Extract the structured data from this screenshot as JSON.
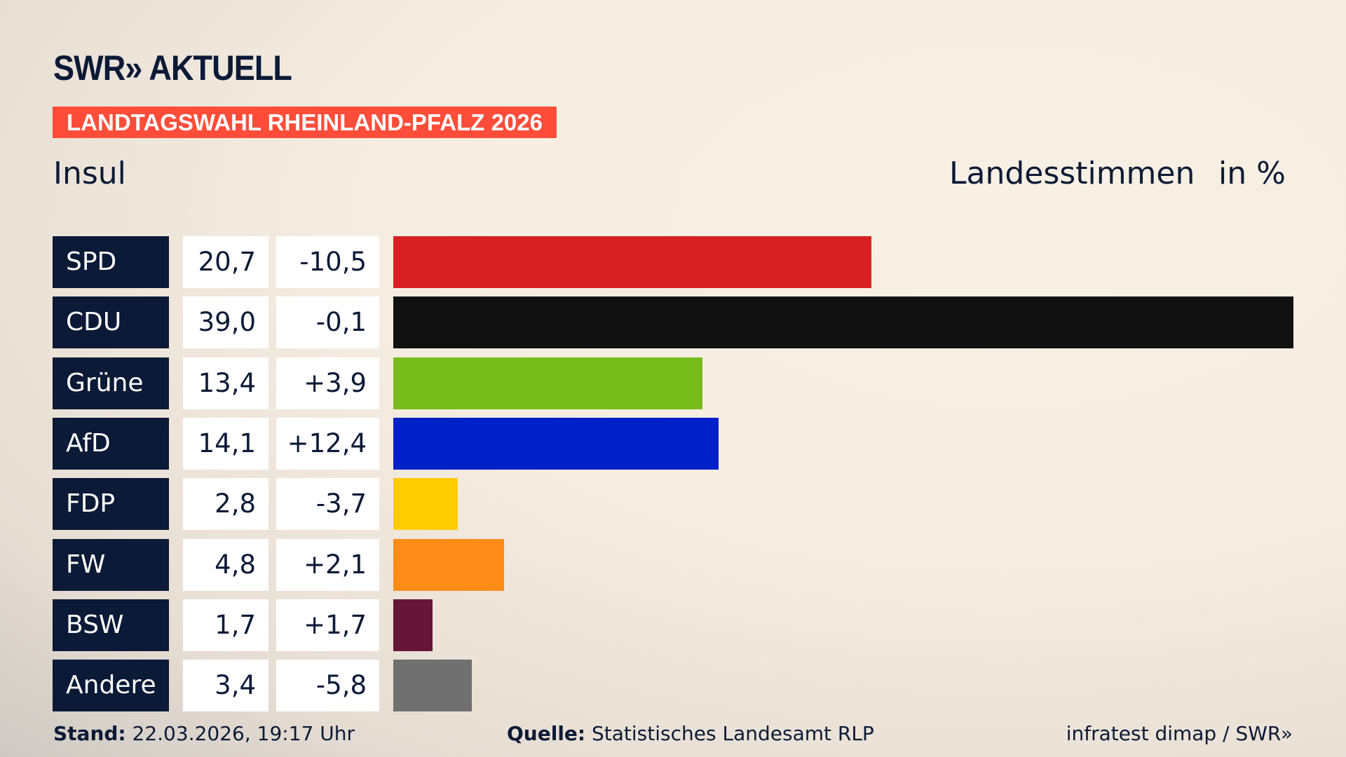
{
  "header": {
    "logo": "SWR» AKTUELL",
    "banner": "LANDTAGSWAHL RHEINLAND-PFALZ 2026",
    "place": "Insul",
    "metric": "Landesstimmen",
    "unit": "in %"
  },
  "chart_data": {
    "type": "bar",
    "orientation": "horizontal",
    "xlim": [
      0,
      39
    ],
    "categories": [
      "SPD",
      "CDU",
      "Grüne",
      "AfD",
      "FDP",
      "FW",
      "BSW",
      "Andere"
    ],
    "values": [
      20.7,
      39.0,
      13.4,
      14.1,
      2.8,
      4.8,
      1.7,
      3.4
    ],
    "value_labels": [
      "20,7",
      "39,0",
      "13,4",
      "14,1",
      "2,8",
      "4,8",
      "1,7",
      "3,4"
    ],
    "change_labels": [
      "-10,5",
      "-0,1",
      "+3,9",
      "+12,4",
      "-3,7",
      "+2,1",
      "+1,7",
      "-5,8"
    ],
    "colors": [
      "#d81f21",
      "#111111",
      "#78bc1b",
      "#0021c8",
      "#ffcc00",
      "#ff8c17",
      "#661638",
      "#707070"
    ]
  },
  "footer": {
    "stand_label": "Stand:",
    "stand_value": "22.03.2026, 19:17 Uhr",
    "source_label": "Quelle:",
    "source_value": "Statistisches Landesamt RLP",
    "credit": "infratest dimap / SWR»"
  }
}
